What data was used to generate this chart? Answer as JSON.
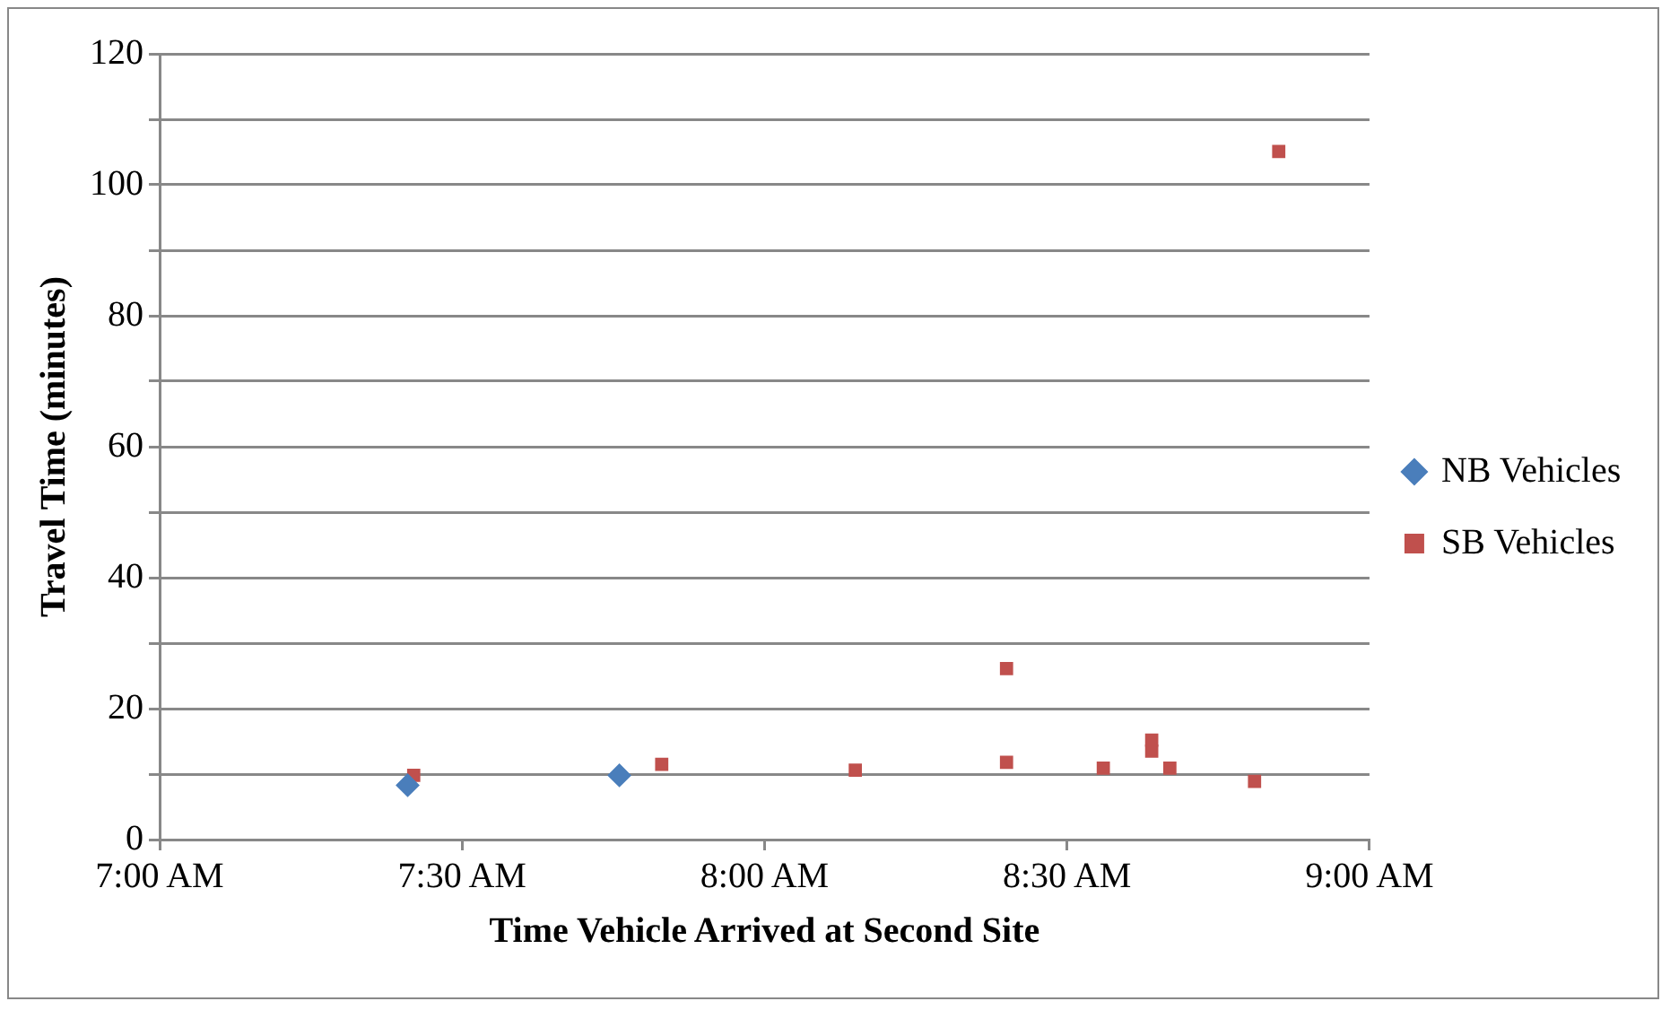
{
  "chart_data": {
    "type": "scatter",
    "xlabel": "Time Vehicle Arrived at Second Site",
    "ylabel": "Travel Time (minutes)",
    "xlim": [
      7,
      9
    ],
    "xticks": [
      {
        "value": 7,
        "label": "7:00 AM"
      },
      {
        "value": 7.5,
        "label": "7:30 AM"
      },
      {
        "value": 8,
        "label": "8:00 AM"
      },
      {
        "value": 8.5,
        "label": "8:30 AM"
      },
      {
        "value": 9,
        "label": "9:00 AM"
      }
    ],
    "ylim": [
      0,
      120
    ],
    "yticks": [
      0,
      {
        "value": 10,
        "label": null
      },
      20,
      {
        "value": 30,
        "label": null
      },
      40,
      {
        "value": 50,
        "label": null
      },
      60,
      {
        "value": 70,
        "label": null
      },
      80,
      {
        "value": 90,
        "label": null
      },
      100,
      {
        "value": 110,
        "label": null
      },
      120
    ],
    "grid": "y",
    "legend": "right",
    "series": [
      {
        "name": "NB Vehicles",
        "color": "#4a7ebb",
        "marker": "diamond",
        "x": [
          7.41,
          7.76
        ],
        "values": [
          8.3,
          9.8
        ]
      },
      {
        "name": "SB Vehicles",
        "color": "#c0504d",
        "marker": "square",
        "x": [
          7.42,
          7.83,
          8.15,
          8.4,
          8.4,
          8.56,
          8.64,
          8.64,
          8.67,
          8.81,
          8.85
        ],
        "values": [
          9.8,
          11.5,
          10.6,
          26.1,
          11.8,
          10.9,
          15.2,
          13.5,
          10.9,
          8.9,
          105.1
        ]
      }
    ]
  }
}
